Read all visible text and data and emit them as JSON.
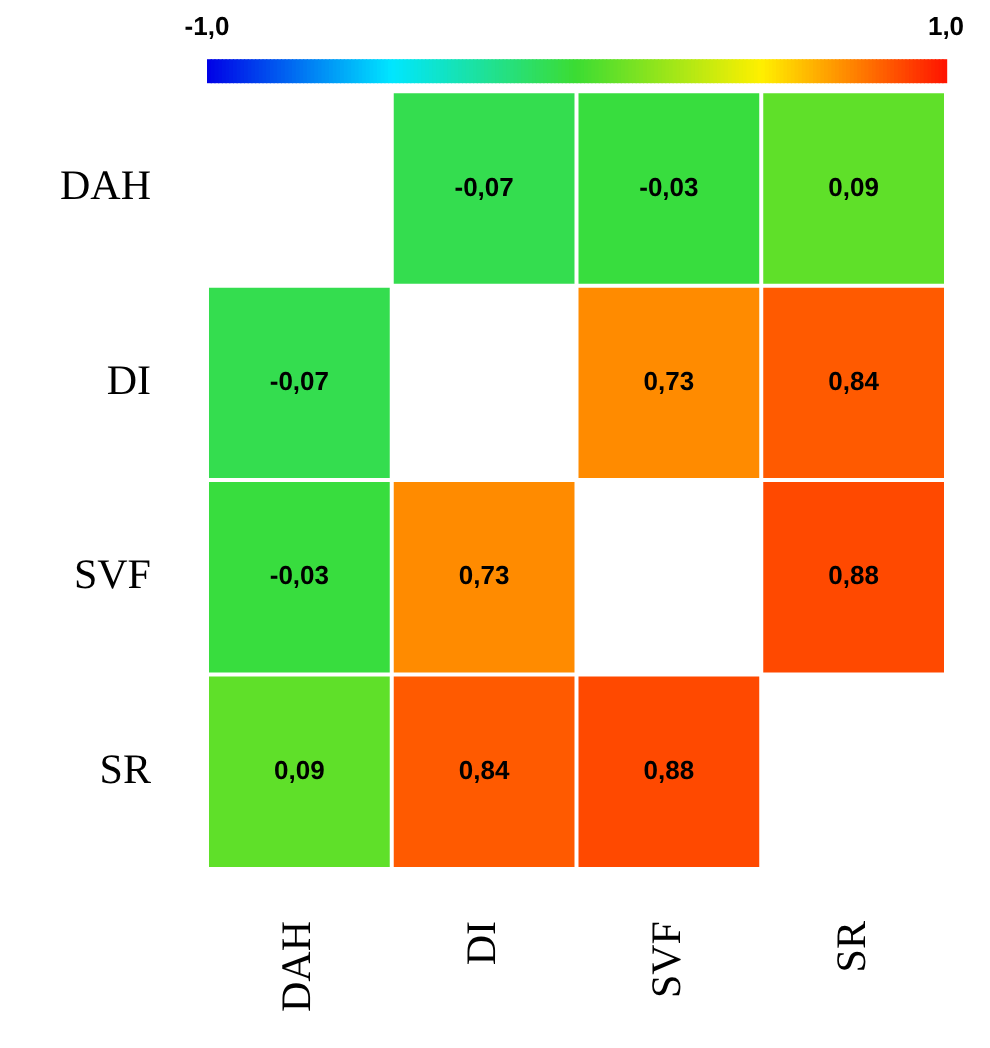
{
  "chart_data": {
    "type": "heatmap",
    "categories": [
      "DAH",
      "DI",
      "SVF",
      "SR"
    ],
    "y_categories": [
      "DAH",
      "DI",
      "SVF",
      "SR"
    ],
    "cells": [
      [
        null,
        -0.07,
        -0.03,
        0.09
      ],
      [
        -0.07,
        null,
        0.73,
        0.84
      ],
      [
        -0.03,
        0.73,
        null,
        0.88
      ],
      [
        0.09,
        0.84,
        0.88,
        null
      ]
    ],
    "cell_labels": [
      [
        null,
        "-0,07",
        "-0,03",
        "0,09"
      ],
      [
        "-0,07",
        null,
        "0,73",
        "0,84"
      ],
      [
        "-0,03",
        "0,73",
        null,
        "0,88"
      ],
      [
        "0,09",
        "0,84",
        "0,88",
        null
      ]
    ],
    "clim": [
      -1,
      1
    ],
    "cticks": [
      {
        "value": -1,
        "label": "-1,0"
      },
      {
        "value": 1,
        "label": "1,0"
      }
    ]
  }
}
